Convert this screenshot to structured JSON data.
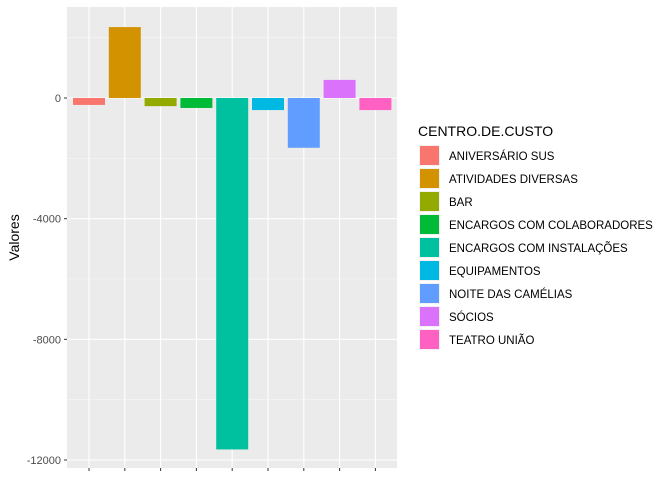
{
  "chart_data": {
    "type": "bar",
    "ylabel": "Valores",
    "xlabel": "",
    "ylim": [
      -12200,
      3000
    ],
    "yticks": [
      0,
      -4000,
      -8000,
      -12000
    ],
    "ytick_labels": [
      "0",
      "-4000",
      "-8000",
      "-12000"
    ],
    "grid": true,
    "legend": {
      "title": "CENTRO.DE.CUSTO",
      "placement": "right"
    },
    "categories": [
      "ANIVERSÁRIO SUS",
      "ATIVIDADES DIVERSAS",
      "BAR",
      "ENCARGOS COM COLABORADORES",
      "ENCARGOS COM INSTALAÇÕES",
      "EQUIPAMENTOS",
      "NOITE DAS CAMÉLIAS",
      "SÓCIOS",
      "TEATRO UNIÃO"
    ],
    "values": [
      -230,
      2350,
      -270,
      -330,
      -11650,
      -400,
      -1650,
      600,
      -400
    ],
    "colors": [
      "#F8766D",
      "#D39200",
      "#93AA00",
      "#00BA38",
      "#00C19F",
      "#00B9E3",
      "#619CFF",
      "#DB72FB",
      "#FF61C3"
    ]
  }
}
